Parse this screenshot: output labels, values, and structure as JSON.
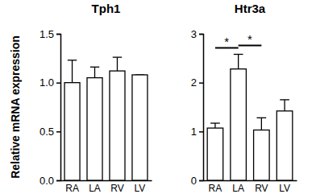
{
  "chart_data": [
    {
      "type": "bar",
      "title": "Tph1",
      "y_label": "Relative mRNA expression",
      "categories": [
        "RA",
        "LA",
        "RV",
        "LV"
      ],
      "values": [
        1.0,
        1.05,
        1.12,
        1.08
      ],
      "errors": [
        0.23,
        0.11,
        0.14,
        0.0
      ],
      "color": "#ffffff",
      "ylim": [
        0,
        1.5
      ],
      "yticks": [
        {
          "value": 0,
          "label": "0.0"
        },
        {
          "value": 0.5,
          "label": "0.5"
        },
        {
          "value": 1.0,
          "label": "1.0"
        },
        {
          "value": 1.5,
          "label": "1.5"
        }
      ]
    },
    {
      "type": "bar",
      "title": "Htr3a",
      "categories": [
        "RA",
        "LA",
        "RV",
        "LV"
      ],
      "values": [
        1.07,
        2.28,
        1.03,
        1.42
      ],
      "errors": [
        0.1,
        0.3,
        0.25,
        0.23
      ],
      "color": "#ffffff",
      "ylim": [
        0,
        3
      ],
      "yticks": [
        0,
        1,
        2,
        3
      ],
      "annotations": [
        {
          "text": "*",
          "categories": [
            "RA",
            "LA"
          ]
        },
        {
          "text": "*",
          "categories": [
            "LA",
            "RV"
          ]
        }
      ]
    }
  ]
}
